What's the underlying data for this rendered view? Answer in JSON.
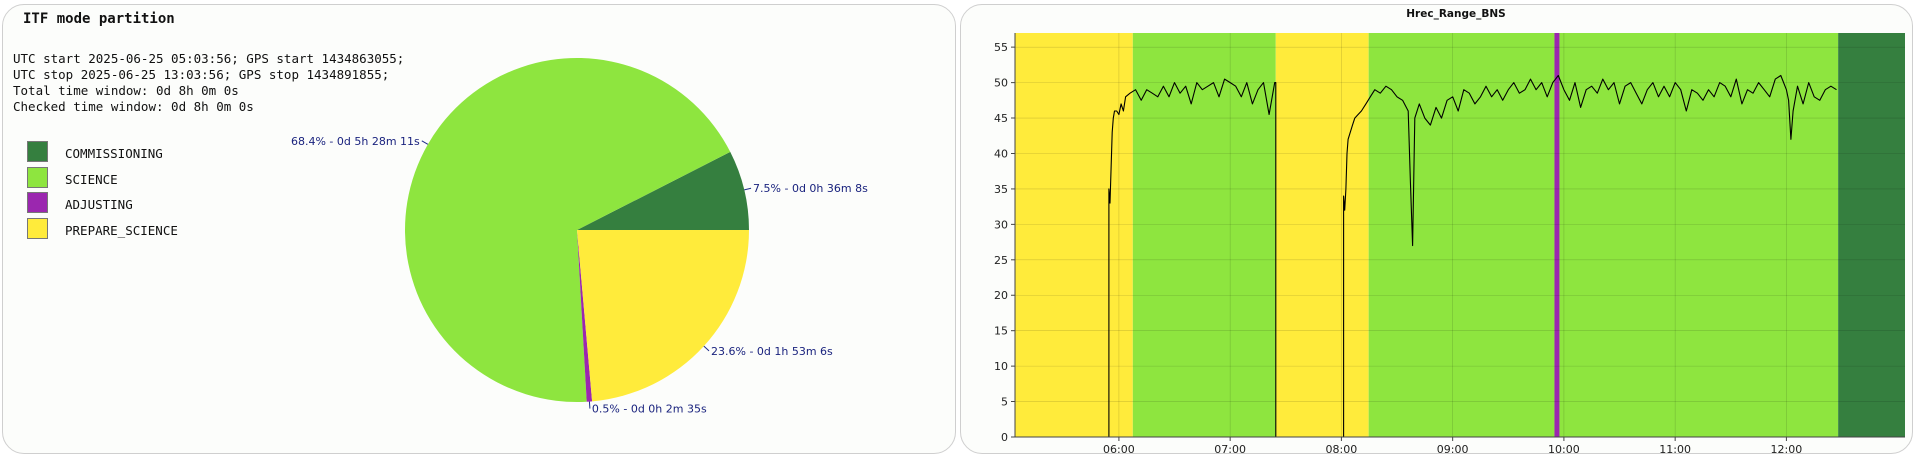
{
  "left_panel": {
    "title": "ITF mode partition",
    "info_lines": [
      "UTC start 2025-06-25 05:03:56; GPS start 1434863055;",
      "UTC stop 2025-06-25 13:03:56; GPS stop 1434891855;",
      "Total time window: 0d 8h 0m 0s",
      "Checked time window: 0d 8h 0m 0s"
    ]
  },
  "chart_data": [
    {
      "type": "pie",
      "title": "ITF mode partition",
      "start_angle_deg": 0,
      "direction": "counterclockwise",
      "slices": [
        {
          "name": "COMMISSIONING",
          "value": 7.5,
          "label": "7.5% - 0d 0h 36m 8s",
          "color": "#357f3f"
        },
        {
          "name": "SCIENCE",
          "value": 68.4,
          "label": "68.4% - 0d 5h 28m 11s",
          "color": "#8ee53f"
        },
        {
          "name": "ADJUSTING",
          "value": 0.5,
          "label": "0.5% - 0d 0h 2m 35s",
          "color": "#9b27af"
        },
        {
          "name": "PREPARE_SCIENCE",
          "value": 23.6,
          "label": "23.6% - 0d 1h 53m 6s",
          "color": "#ffeb3b"
        }
      ],
      "legend": {
        "placement": "left",
        "entries": [
          "COMMISSIONING",
          "SCIENCE",
          "ADJUSTING",
          "PREPARE_SCIENCE"
        ]
      }
    },
    {
      "type": "line",
      "title": "Hrec_Range_BNS",
      "xlabel": "",
      "ylabel": "",
      "x_unit": "UTC hour",
      "xlim": [
        5.066,
        13.066
      ],
      "ylim": [
        0,
        57
      ],
      "x_ticks": [
        6,
        7,
        8,
        9,
        10,
        11,
        12
      ],
      "x_tick_labels": [
        "06:00",
        "07:00",
        "08:00",
        "09:00",
        "10:00",
        "11:00",
        "12:00"
      ],
      "y_ticks": [
        0,
        5,
        10,
        15,
        20,
        25,
        30,
        35,
        40,
        45,
        50,
        55
      ],
      "y_tick_labels": [
        "0",
        "5",
        "10",
        "15",
        "20",
        "25",
        "30",
        "35",
        "40",
        "45",
        "50",
        "55"
      ],
      "grid": true,
      "background_bands": [
        {
          "mode": "PREPARE_SCIENCE",
          "x0": 5.066,
          "x1": 6.125
        },
        {
          "mode": "SCIENCE",
          "x0": 6.125,
          "x1": 7.41
        },
        {
          "mode": "PREPARE_SCIENCE",
          "x0": 7.41,
          "x1": 8.245
        },
        {
          "mode": "SCIENCE",
          "x0": 8.245,
          "x1": 9.915
        },
        {
          "mode": "ADJUSTING",
          "x0": 9.915,
          "x1": 9.96
        },
        {
          "mode": "SCIENCE",
          "x0": 9.96,
          "x1": 12.465
        },
        {
          "mode": "COMMISSIONING",
          "x0": 12.465,
          "x1": 13.066
        }
      ],
      "band_colors": {
        "PREPARE_SCIENCE": "#ffeb3b",
        "SCIENCE": "#8ee53f",
        "ADJUSTING": "#9b27af",
        "COMMISSIONING": "#357f3f"
      },
      "line_color": "#000000",
      "series": [
        {
          "x": [
            5.91,
            5.91,
            5.92,
            5.93,
            5.94,
            5.95,
            5.96,
            5.98,
            6.0,
            6.02,
            6.04,
            6.06,
            6.1,
            6.15,
            6.2,
            6.25,
            6.3,
            6.35,
            6.4,
            6.45,
            6.5,
            6.55,
            6.6,
            6.65,
            6.7,
            6.75,
            6.8,
            6.85,
            6.9,
            6.95,
            7.0,
            7.05,
            7.1,
            7.15,
            7.2,
            7.25,
            7.3,
            7.35,
            7.4,
            7.41,
            7.41,
            8.02,
            8.02,
            8.03,
            8.04,
            8.05,
            8.06,
            8.08,
            8.1,
            8.12,
            8.15,
            8.18,
            8.22,
            8.26,
            8.3,
            8.35,
            8.4,
            8.45,
            8.5,
            8.55,
            8.6,
            8.62,
            8.64,
            8.66,
            8.7,
            8.75,
            8.8,
            8.85,
            8.9,
            8.95,
            9.0,
            9.05,
            9.1,
            9.15,
            9.2,
            9.25,
            9.3,
            9.35,
            9.4,
            9.45,
            9.5,
            9.55,
            9.6,
            9.65,
            9.7,
            9.75,
            9.8,
            9.85,
            9.9,
            9.95,
            10.0,
            10.05,
            10.1,
            10.15,
            10.2,
            10.25,
            10.3,
            10.35,
            10.4,
            10.45,
            10.5,
            10.55,
            10.6,
            10.65,
            10.7,
            10.75,
            10.8,
            10.85,
            10.9,
            10.95,
            11.0,
            11.05,
            11.1,
            11.15,
            11.2,
            11.25,
            11.3,
            11.35,
            11.4,
            11.45,
            11.5,
            11.55,
            11.6,
            11.65,
            11.7,
            11.75,
            11.8,
            11.85,
            11.9,
            11.95,
            12.0,
            12.02,
            12.04,
            12.06,
            12.1,
            12.15,
            12.2,
            12.25,
            12.3,
            12.35,
            12.4,
            12.45
          ],
          "y": [
            0,
            35,
            33,
            38,
            43,
            45,
            46,
            46,
            45.5,
            47,
            46,
            48,
            48.5,
            49,
            47.5,
            49,
            48.5,
            48,
            49.5,
            48,
            50,
            48.5,
            49.5,
            47,
            50,
            49,
            49.5,
            50,
            48,
            50.5,
            50,
            49.5,
            48,
            50,
            47,
            49,
            50,
            45.5,
            50,
            50,
            0,
            0,
            34,
            32,
            35,
            40,
            42,
            43,
            44,
            45,
            45.5,
            46,
            47,
            48,
            49,
            48.5,
            49.5,
            49,
            48,
            47.5,
            46,
            36,
            27,
            45,
            47,
            45,
            44,
            46.5,
            45,
            47.5,
            48,
            46,
            49,
            48.5,
            47,
            48,
            49.5,
            48,
            49,
            47.5,
            49,
            50,
            48.5,
            49,
            50.5,
            49,
            50,
            48,
            50,
            51,
            49,
            47.5,
            50,
            46.5,
            49,
            49.5,
            48.5,
            50.5,
            49,
            50,
            47,
            49.5,
            50,
            48.5,
            47,
            49,
            50,
            48,
            49.5,
            48,
            50,
            49,
            46,
            49,
            48.5,
            47.5,
            49,
            48,
            50,
            49.5,
            48,
            50.5,
            47,
            49,
            48.5,
            50,
            49,
            48,
            50.5,
            51,
            49,
            47.5,
            42,
            46,
            49.5,
            47,
            50,
            48,
            47.5,
            49,
            49.5,
            49
          ]
        }
      ]
    }
  ]
}
